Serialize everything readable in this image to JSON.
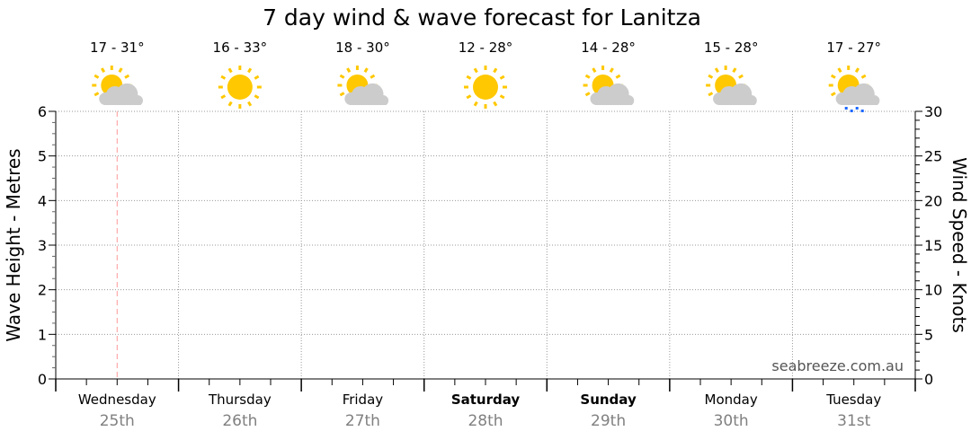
{
  "chart_data": {
    "type": "line",
    "title": "7 day wind & wave forecast for Lanitza",
    "ylabel_left": "Wave Height - Metres",
    "ylabel_right": "Wind Speed - Knots",
    "ylim_left": [
      0,
      6
    ],
    "ylim_right": [
      0,
      30
    ],
    "yticks_left": [
      "0",
      "1",
      "2",
      "3",
      "4",
      "5",
      "6"
    ],
    "yticks_right": [
      "0",
      "5",
      "10",
      "15",
      "20",
      "25",
      "30"
    ],
    "grid": true,
    "watermark": "seabreeze.com.au",
    "now_marker_color": "#ff9999",
    "days": [
      {
        "day": "Wednesday",
        "date": "25th",
        "temp": "17 - 31°",
        "icon": "partly-cloudy-icon",
        "weekend": false
      },
      {
        "day": "Thursday",
        "date": "26th",
        "temp": "16 - 33°",
        "icon": "sunny-icon",
        "weekend": false
      },
      {
        "day": "Friday",
        "date": "27th",
        "temp": "18 - 30°",
        "icon": "partly-cloudy-icon",
        "weekend": false
      },
      {
        "day": "Saturday",
        "date": "28th",
        "temp": "12 - 28°",
        "icon": "sunny-icon",
        "weekend": true
      },
      {
        "day": "Sunday",
        "date": "29th",
        "temp": "14 - 28°",
        "icon": "partly-cloudy-icon",
        "weekend": true
      },
      {
        "day": "Monday",
        "date": "30th",
        "temp": "15 - 28°",
        "icon": "partly-cloudy-icon",
        "weekend": false
      },
      {
        "day": "Tuesday",
        "date": "31st",
        "temp": "17 - 27°",
        "icon": "partly-cloudy-showers-icon",
        "weekend": false
      }
    ],
    "series": []
  },
  "colors": {
    "sun": "#ffc800",
    "cloud": "#cccccc",
    "rain": "#1a66ff",
    "date_text": "#808080"
  }
}
